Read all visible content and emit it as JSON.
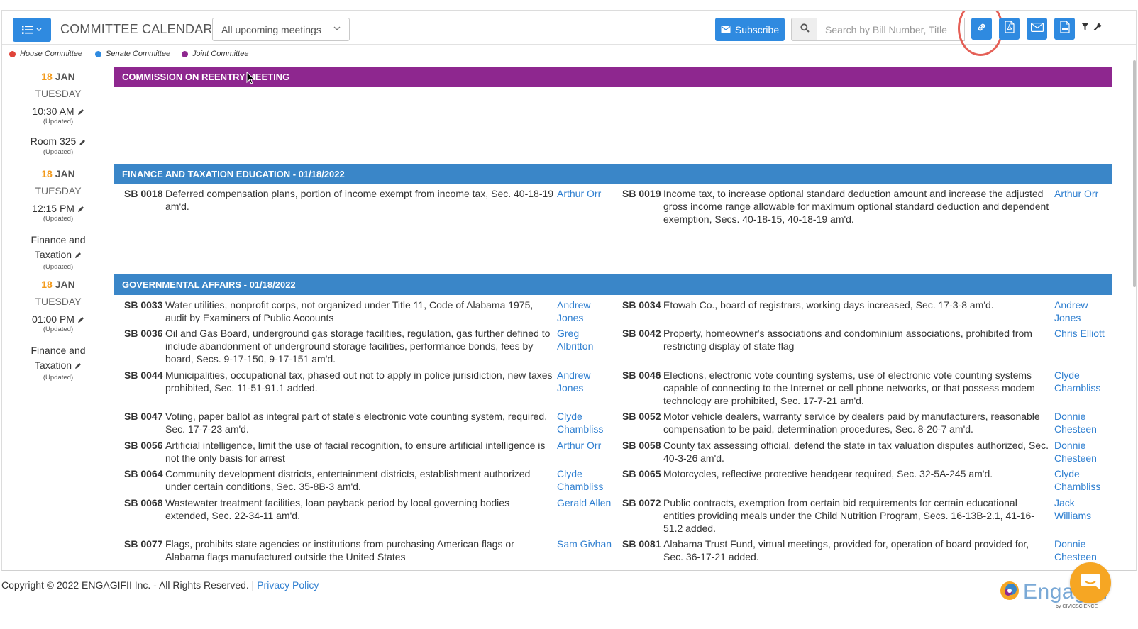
{
  "toolbar": {
    "title": "COMMITTEE CALENDAR",
    "filter_selected": "All upcoming meetings",
    "subscribe_label": "Subscribe",
    "search_placeholder": "Search by Bill Number, Title"
  },
  "legend": {
    "items": [
      {
        "label": "House Committee",
        "color": "#e0443a"
      },
      {
        "label": "Senate Committee",
        "color": "#2f8ae0"
      },
      {
        "label": "Joint Committee",
        "color": "#8e278f"
      }
    ]
  },
  "meetings": [
    {
      "day": "18",
      "month": "JAN",
      "weekday": "TUESDAY",
      "time": "10:30 AM",
      "time_note": "(Updated)",
      "location": "Room 325",
      "location_note": "(Updated)",
      "title": "COMMISSION ON REENTRY MEETING",
      "color": "#8e278f"
    },
    {
      "day": "18",
      "month": "JAN",
      "weekday": "TUESDAY",
      "time": "12:15 PM",
      "time_note": "(Updated)",
      "location_line1": "Finance and",
      "location_line2": "Taxation",
      "location_note": "(Updated)",
      "title": "FINANCE AND TAXATION EDUCATION - 01/18/2022",
      "color": "#3a86c8"
    },
    {
      "day": "18",
      "month": "JAN",
      "weekday": "TUESDAY",
      "time": "01:00 PM",
      "time_note": "(Updated)",
      "location_line1": "Finance and",
      "location_line2": "Taxation",
      "location_note": "(Updated)",
      "title": "GOVERNMENTAL AFFAIRS - 01/18/2022",
      "color": "#3a86c8"
    }
  ],
  "finance_bills": [
    {
      "num": "SB 0018",
      "desc": "Deferred compensation plans, portion of income exempt from income tax, Sec. 40-18-19 am'd.",
      "sponsor": "Arthur Orr"
    },
    {
      "num": "SB 0019",
      "desc": "Income tax, to increase optional standard deduction amount and increase the adjusted gross income range allowable for maximum optional standard deduction and dependent exemption, Secs. 40-18-15, 40-18-19 am'd.",
      "sponsor": "Arthur Orr"
    }
  ],
  "gov_bills": [
    {
      "num": "SB 0033",
      "desc": "Water utilities, nonprofit corps, not organized under Title 11, Code of Alabama 1975, audit by Examiners of Public Accounts",
      "sponsor": "Andrew Jones"
    },
    {
      "num": "SB 0034",
      "desc": "Etowah Co., board of registrars, working days increased, Sec. 17-3-8 am'd.",
      "sponsor": "Andrew Jones"
    },
    {
      "num": "SB 0036",
      "desc": "Oil and Gas Board, underground gas storage facilities, regulation, gas further defined to include abandonment of underground storage facilities, performance bonds, fees by board, Secs. 9-17-150, 9-17-151 am'd.",
      "sponsor": "Greg Albritton"
    },
    {
      "num": "SB 0042",
      "desc": "Property, homeowner's associations and condominium associations, prohibited from restricting display of state flag",
      "sponsor": "Chris Elliott"
    },
    {
      "num": "SB 0044",
      "desc": "Municipalities, occupational tax, phased out not to apply in police jurisidiction, new taxes prohibited, Sec. 11-51-91.1 added.",
      "sponsor": "Andrew Jones"
    },
    {
      "num": "SB 0046",
      "desc": "Elections, electronic vote counting systems, use of electronic vote counting systems capable of connecting to the Internet or cell phone networks, or that possess modem technology are prohibited, Sec. 17-7-21 am'd.",
      "sponsor": "Clyde Chambliss"
    },
    {
      "num": "SB 0047",
      "desc": "Voting, paper ballot as integral part of state's electronic vote counting system, required, Sec. 17-7-23 am'd.",
      "sponsor": "Clyde Chambliss"
    },
    {
      "num": "SB 0052",
      "desc": "Motor vehicle dealers, warranty service by dealers paid by manufacturers, reasonable compensation to be paid, determination procedures, Sec. 8-20-7 am'd.",
      "sponsor": "Donnie Chesteen"
    },
    {
      "num": "SB 0056",
      "desc": "Artificial intelligence, limit the use of facial recognition, to ensure artificial intelligence is not the only basis for arrest",
      "sponsor": "Arthur Orr"
    },
    {
      "num": "SB 0058",
      "desc": "County tax assessing official, defend the state in tax valuation disputes authorized, Sec. 40-3-26 am'd.",
      "sponsor": "Donnie Chesteen"
    },
    {
      "num": "SB 0064",
      "desc": "Community development districts, entertainment districts, establishment authorized under certain conditions, Sec. 35-8B-3 am'd.",
      "sponsor": "Clyde Chambliss"
    },
    {
      "num": "SB 0065",
      "desc": "Motorcycles, reflective protective headgear required, Sec. 32-5A-245 am'd.",
      "sponsor": "Clyde Chambliss"
    },
    {
      "num": "SB 0068",
      "desc": "Wastewater treatment facilities, loan payback period by local governing bodies extended, Sec. 22-34-11 am'd.",
      "sponsor": "Gerald Allen"
    },
    {
      "num": "SB 0072",
      "desc": "Public contracts, exemption from certain bid requirements for certain educational entities providing meals under the Child Nutrition Program, Secs. 16-13B-2.1, 41-16-51.2 added.",
      "sponsor": "Jack Williams"
    },
    {
      "num": "SB 0077",
      "desc": "Flags, prohibits state agencies or institutions from purchasing American flags or Alabama flags manufactured outside the United States",
      "sponsor": "Sam Givhan"
    },
    {
      "num": "SB 0081",
      "desc": "Alabama Trust Fund, virtual meetings, provided for, operation of board provided for, Sec. 36-17-21 added.",
      "sponsor": "Donnie Chesteen"
    }
  ],
  "footer": {
    "copyright": "Copyright © 2022 ENGAGIFII Inc. - All Rights Reserved. |",
    "privacy": "Privacy Policy",
    "brand": "Engagifii",
    "brand_sub": "by CIVICSCIENCE"
  }
}
